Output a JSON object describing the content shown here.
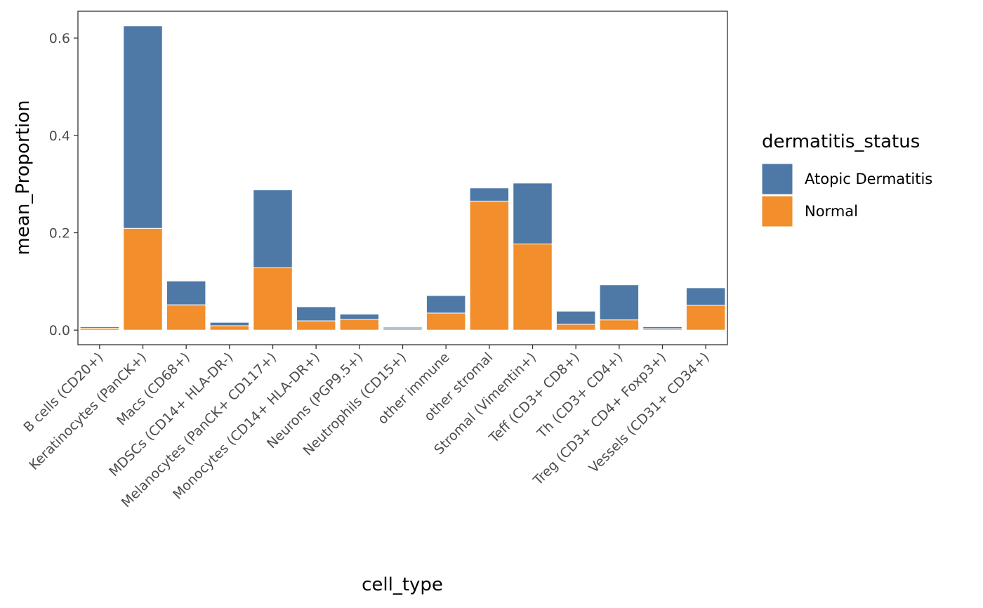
{
  "chart_data": {
    "type": "bar",
    "stacked": true,
    "xlabel": "cell_type",
    "ylabel": "mean_Proportion",
    "ylim": [
      -0.03,
      0.655
    ],
    "yticks": [
      0.0,
      0.2,
      0.4,
      0.6
    ],
    "ytick_labels": [
      "0.0",
      "0.2",
      "0.4",
      "0.6"
    ],
    "grid": false,
    "legend_position": "right",
    "legend": {
      "title": "dermatitis_status",
      "entries": [
        "Atopic Dermatitis",
        "Normal"
      ]
    },
    "categories": [
      "B cells (CD20+)",
      "Keratinocytes (PanCK+)",
      "Macs (CD68+)",
      "MDSCs (CD14+ HLA-DR-)",
      "Melanocytes (PanCK+ CD117+)",
      "Monocytes (CD14+ HLA-DR+)",
      "Neurons (PGP9.5+)",
      "Neutrophils (CD15+)",
      "other immune",
      "other stromal",
      "Stromal (Vimentin+)",
      "Teff (CD3+ CD8+)",
      "Th (CD3+ CD4+)",
      "Treg (CD3+ CD4+ Foxp3+)",
      "Vessels (CD31+ CD34+)"
    ],
    "series": [
      {
        "name": "Normal",
        "color": "#F28E2B",
        "values": [
          0.004,
          0.209,
          0.052,
          0.009,
          0.128,
          0.019,
          0.022,
          0.003,
          0.035,
          0.265,
          0.177,
          0.012,
          0.021,
          0.003,
          0.051
        ]
      },
      {
        "name": "Atopic Dermatitis",
        "color": "#4E79A7",
        "values": [
          0.003,
          0.416,
          0.049,
          0.007,
          0.16,
          0.029,
          0.011,
          0.003,
          0.036,
          0.027,
          0.125,
          0.027,
          0.072,
          0.004,
          0.036
        ]
      }
    ]
  }
}
